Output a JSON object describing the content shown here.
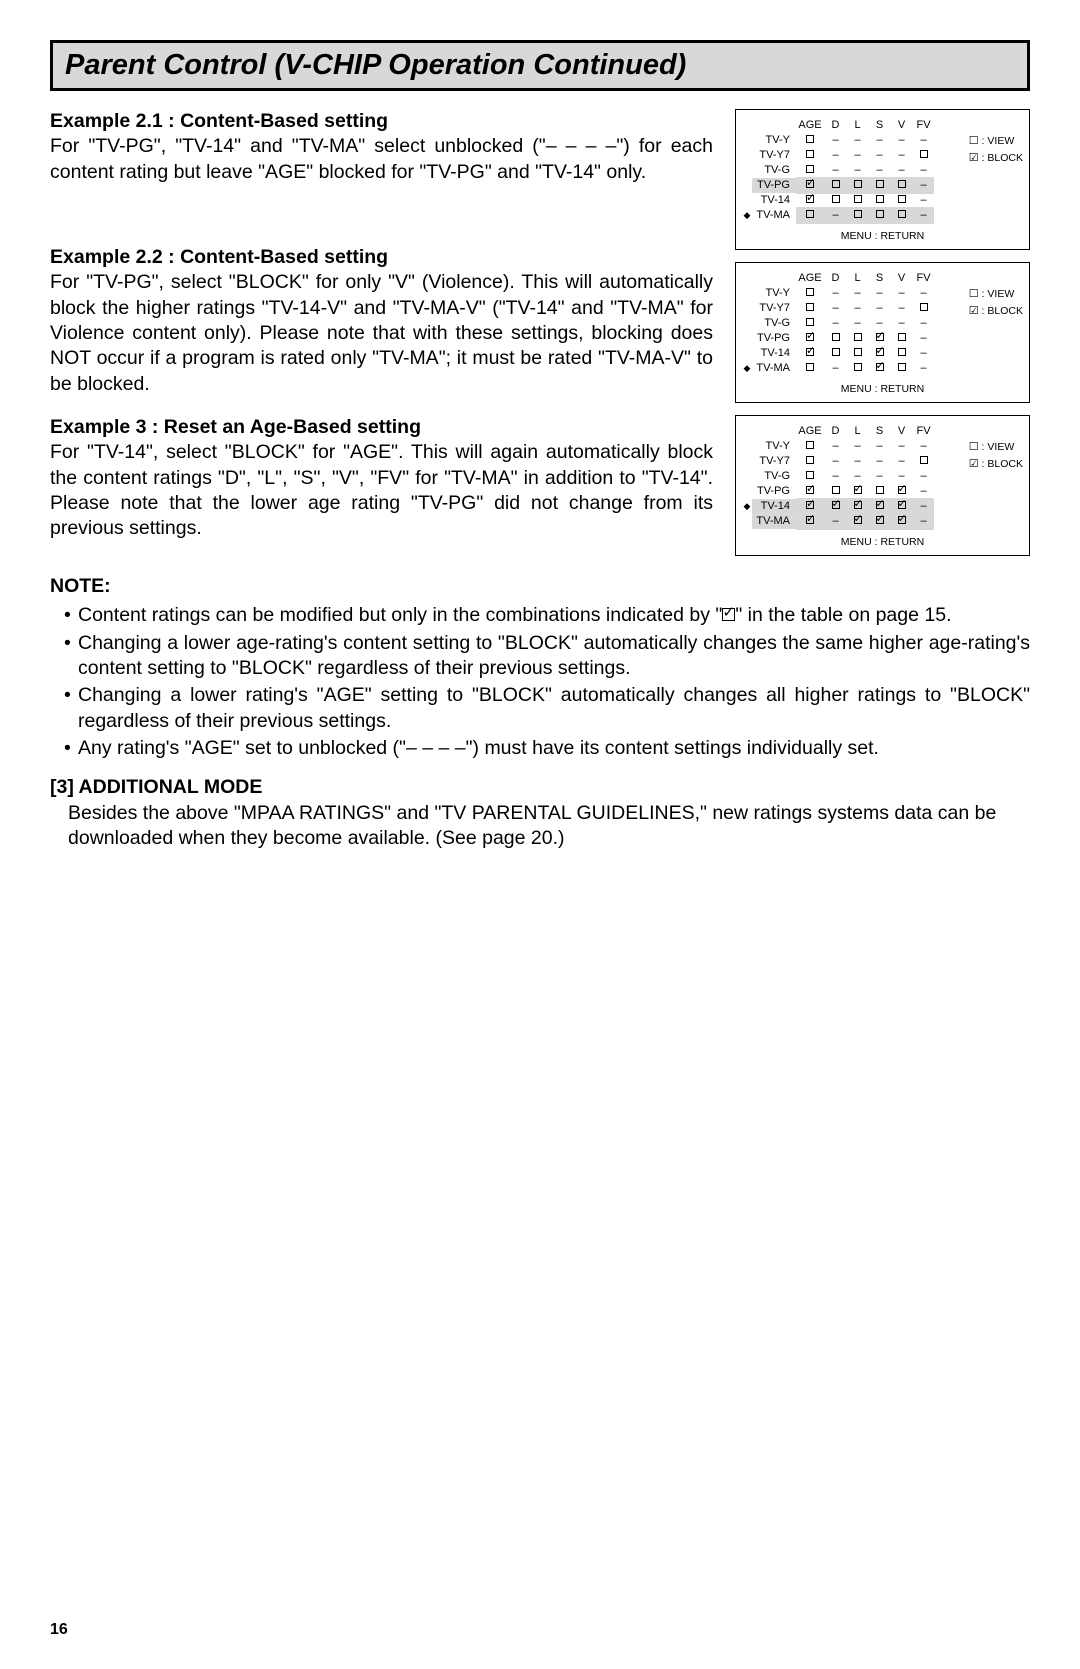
{
  "title": "Parent Control (V-CHIP Operation Continued)",
  "examples": [
    {
      "heading": "Example 2.1 : Content-Based setting",
      "body": "For \"TV-PG\", \"TV-14\" and \"TV-MA\" select unblocked (\"– – – –\") for each content rating but leave \"AGE\" blocked for \"TV-PG\" and \"TV-14\" only."
    },
    {
      "heading": "Example 2.2 : Content-Based setting",
      "body": "For \"TV-PG\", select \"BLOCK\" for only \"V\" (Violence). This will automatically block the higher ratings \"TV-14-V\" and \"TV-MA-V\" (\"TV-14\" and \"TV-MA\" for Violence content only). Please note that with these settings, blocking does NOT occur if a program is rated only \"TV-MA\"; it must be rated \"TV-MA-V\" to be blocked."
    },
    {
      "heading": "Example 3 : Reset an Age-Based setting",
      "body": "For \"TV-14\", select \"BLOCK\" for \"AGE\". This will again automatically block the content ratings \"D\", \"L\", \"S\", \"V\", \"FV\" for \"TV-MA\" in addition to \"TV-14\". Please note that the lower age rating \"TV-PG\" did not change from its previous settings."
    }
  ],
  "note_label": "NOTE:",
  "notes": [
    "Content ratings can be modified but only in the combinations indicated by \"__CHECK__\" in the table on page 15.",
    "Changing a lower age-rating's content setting to \"BLOCK\" automatically changes the same higher age-rating's content setting to \"BLOCK\" regardless of their previous settings.",
    "Changing a lower rating's \"AGE\" setting to \"BLOCK\" automatically changes all higher ratings to \"BLOCK\" regardless of their previous settings.",
    "Any rating's \"AGE\" set to unblocked (\"– – – –\") must have its content settings individually set."
  ],
  "additional_mode": {
    "heading": "[3] ADDITIONAL MODE",
    "body": "Besides the above \"MPAA RATINGS\" and \"TV PARENTAL GUIDELINES,\" new ratings systems data can be downloaded when they become available. (See page 20.)"
  },
  "page_number": "16",
  "table_shared": {
    "headers": [
      "AGE",
      "D",
      "L",
      "S",
      "V",
      "FV"
    ],
    "row_labels": [
      "TV-Y",
      "TV-Y7",
      "TV-G",
      "TV-PG",
      "TV-14",
      "TV-MA"
    ],
    "legend_view": ": VIEW",
    "legend_block": ": BLOCK",
    "menu_text": "MENU : RETURN"
  },
  "tables": [
    {
      "cursor_row": 5,
      "highlight": {
        "row": 5,
        "from": 0,
        "to": 5
      },
      "rows": [
        [
          "u",
          "-",
          "-",
          "-",
          "-",
          "-"
        ],
        [
          "u",
          "-",
          "-",
          "-",
          "-",
          "u"
        ],
        [
          "u",
          "-",
          "-",
          "-",
          "-",
          "-"
        ],
        [
          "c",
          "u",
          "u",
          "u",
          "u",
          "-",
          true
        ],
        [
          "c",
          "u",
          "u",
          "u",
          "u",
          "-"
        ],
        [
          "u",
          "-",
          "u",
          "u",
          "u",
          "-"
        ]
      ]
    },
    {
      "cursor_row": 5,
      "highlight": null,
      "rows": [
        [
          "u",
          "-",
          "-",
          "-",
          "-",
          "-"
        ],
        [
          "u",
          "-",
          "-",
          "-",
          "-",
          "u"
        ],
        [
          "u",
          "-",
          "-",
          "-",
          "-",
          "-"
        ],
        [
          "c",
          "u",
          "u",
          "c",
          "u",
          "-"
        ],
        [
          "c",
          "u",
          "u",
          "c",
          "u",
          "-"
        ],
        [
          "u",
          "-",
          "u",
          "c",
          "u",
          "-"
        ]
      ]
    },
    {
      "cursor_row": 4,
      "highlight": {
        "row": 4,
        "from": 0,
        "to": 5
      },
      "rows": [
        [
          "u",
          "-",
          "-",
          "-",
          "-",
          "-"
        ],
        [
          "u",
          "-",
          "-",
          "-",
          "-",
          "u"
        ],
        [
          "u",
          "-",
          "-",
          "-",
          "-",
          "-"
        ],
        [
          "c",
          "u",
          "c",
          "u",
          "c",
          "-"
        ],
        [
          "c",
          "c",
          "c",
          "c",
          "c",
          "-",
          true
        ],
        [
          "c",
          "-",
          "c",
          "c",
          "c",
          "-",
          true
        ]
      ]
    }
  ]
}
